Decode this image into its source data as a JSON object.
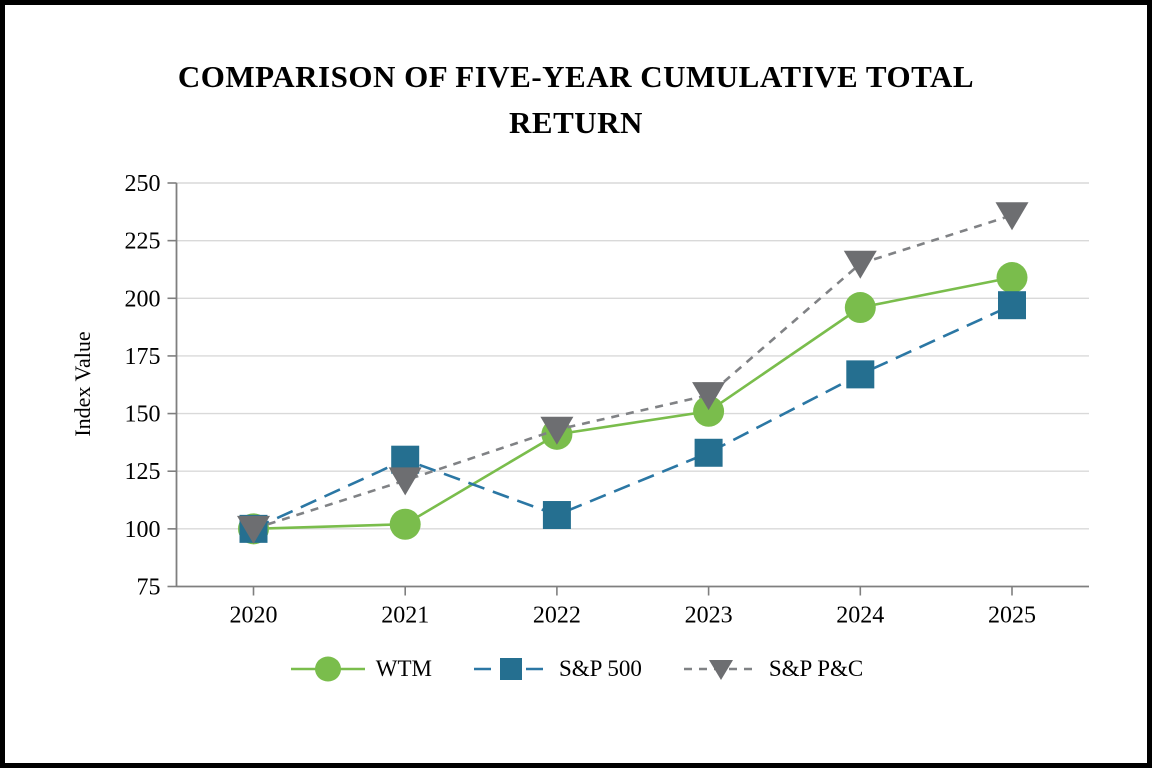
{
  "chart_data": {
    "type": "line",
    "title": "COMPARISON OF FIVE-YEAR CUMULATIVE TOTAL RETURN",
    "ylabel": "Index Value",
    "xlabel": "",
    "categories": [
      "2020",
      "2021",
      "2022",
      "2023",
      "2024",
      "2025"
    ],
    "series": [
      {
        "name": "WTM",
        "marker": "circle",
        "marker_color": "#7abd4c",
        "line_color": "#7abd4c",
        "line_style": "solid",
        "values": [
          100,
          102,
          141,
          151,
          196,
          209
        ]
      },
      {
        "name": "S&P 500",
        "marker": "square",
        "marker_color": "#256f90",
        "line_color": "#2b77a4",
        "line_style": "dashed",
        "values": [
          100,
          130,
          106,
          133,
          167,
          197
        ]
      },
      {
        "name": "S&P P&C",
        "marker": "triangle-down",
        "marker_color": "#6d6e71",
        "line_color": "#808285",
        "line_style": "dashed-short",
        "values": [
          100,
          121,
          143,
          158,
          215,
          236
        ]
      }
    ],
    "ylim": [
      75,
      250
    ],
    "ytick_step": 25,
    "grid": true,
    "legend_position": "bottom",
    "axis_color": "#7f7f7f",
    "gridline_color": "#d9d9d9"
  }
}
